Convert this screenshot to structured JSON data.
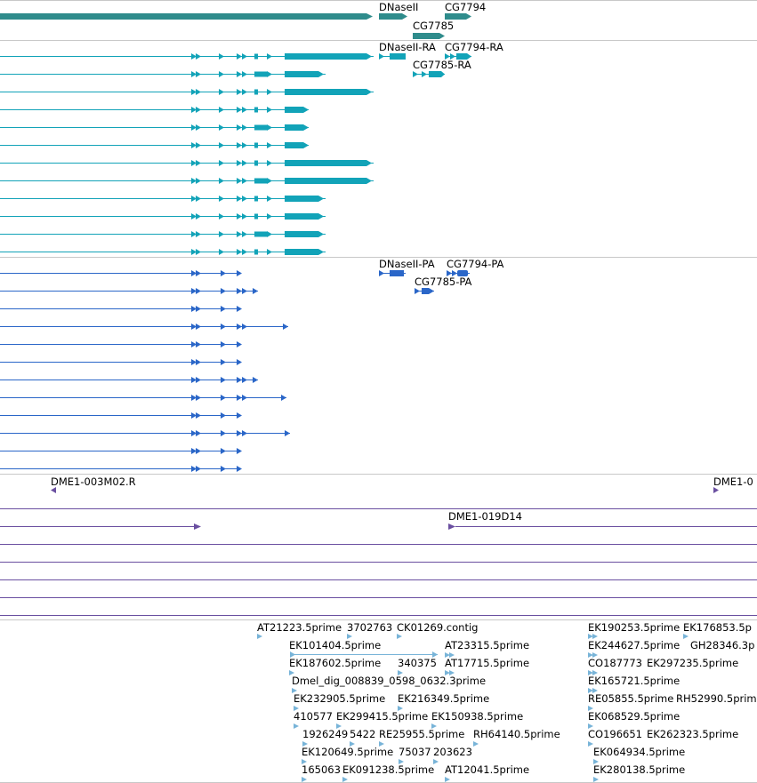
{
  "colors": {
    "gene": "#2f8c8c",
    "mrna": "#12a3b8",
    "cds": "#2a66c8",
    "clone": "#6a4fa0",
    "est": "#78b4d8",
    "divider": "#c8c8c8"
  },
  "gene_track": {
    "labels": [
      "DNaseII",
      "CG7794",
      "CG7785"
    ]
  },
  "transcript_track": {
    "labels": [
      "DNaseII-RA",
      "CG7794-RA",
      "CG7785-RA"
    ]
  },
  "protein_track": {
    "labels": [
      "DNaseII-PA",
      "CG7794-PA",
      "CG7785-PA"
    ]
  },
  "clone_track": {
    "labels": [
      "DME1-003M02.R",
      "DME1-0",
      "DME1-019D14"
    ]
  },
  "est_track": {
    "labels": [
      "AT21223.5prime",
      "3702763",
      "CK01269.contig",
      "EK101404.5prime",
      "AT23315.5prime",
      "EK187602.5prime",
      "340375",
      "AT17715.5prime",
      "Dmel_dig_008839_0598_0632.3prime",
      "EK232905.5prime",
      "EK216349.5prime",
      "410577",
      "EK299415.5prime",
      "EK150938.5prime",
      "1926249",
      "5422",
      "RE25955.5prime",
      "RH64140.5prime",
      "EK120649.5prime",
      "75037",
      "203623",
      "165063",
      "EK091238.5prime",
      "AT12041.5prime",
      "EK190253.5prime",
      "EK176853.5p",
      "EK244627.5prime",
      "GH28346.3p",
      "CO187773",
      "EK297235.5prime",
      "EK165721.5prime",
      "RE05855.5prime",
      "RH52990.5prime",
      "EK068529.5prime",
      "CO196651",
      "EK262323.5prime",
      "EK064934.5prime",
      "EK280138.5prime"
    ]
  }
}
